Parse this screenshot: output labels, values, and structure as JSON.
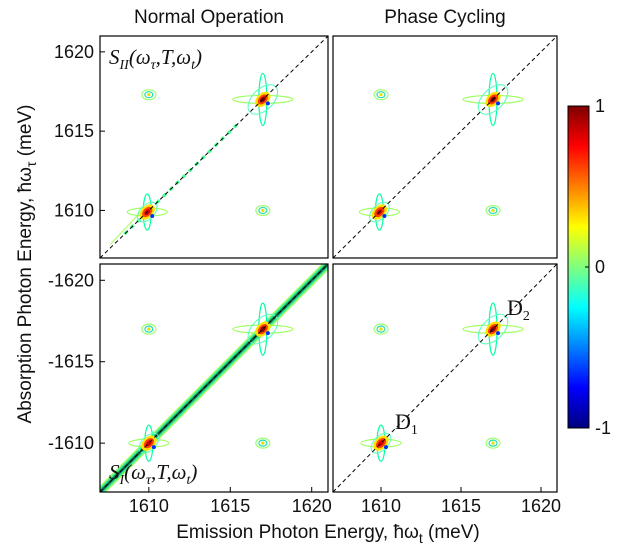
{
  "figure": {
    "column_titles": [
      "Normal Operation",
      "Phase Cycling"
    ],
    "xlabel": {
      "main": "Emission Photon Energy, ",
      "symbol": "ħω",
      "subscript": "t",
      "unit": " (meV)"
    },
    "ylabel": {
      "main": "Absorption Photon Energy, ",
      "symbol": "ħω",
      "subscript": "τ",
      "unit": " (meV)"
    }
  },
  "colorbar": {
    "ticks": [
      {
        "value": 1,
        "label": "1"
      },
      {
        "value": 0,
        "label": "0"
      },
      {
        "value": -1,
        "label": "-1"
      }
    ],
    "colors": [
      "#00007f",
      "#0000ff",
      "#007fff",
      "#00ffff",
      "#7fff7f",
      "#ffff00",
      "#ff7f00",
      "#ff0000",
      "#7f0000"
    ]
  },
  "chart_data": [
    {
      "type": "heatmap",
      "panel": "top-left",
      "column": "Normal Operation",
      "annotation": {
        "S": "S",
        "sub": "II",
        "args": "(ω",
        "a_sub": "τ",
        "rest": ",T,ω",
        "r_sub": "t",
        "close": ")"
      },
      "xlim": [
        1607,
        1621
      ],
      "ylim": [
        1607,
        1621
      ],
      "y_ticks": [
        {
          "value": 1610,
          "label": "1610"
        },
        {
          "value": 1615,
          "label": "1615"
        },
        {
          "value": 1620,
          "label": "1620"
        }
      ],
      "x_ticks": [],
      "diagonal": "dashed",
      "peaks": [
        {
          "x": 1617.0,
          "y": 1617.0,
          "amp": 1.0,
          "shape": "star-large"
        },
        {
          "x": 1609.9,
          "y": 1609.9,
          "amp": 0.6,
          "shape": "star"
        },
        {
          "x": 1610.0,
          "y": 1617.3,
          "amp": 0.15,
          "shape": "small"
        },
        {
          "x": 1617.0,
          "y": 1610.0,
          "amp": 0.15,
          "shape": "small"
        }
      ],
      "streak": {
        "from": [
          1608.5,
          1608.5
        ],
        "to": [
          1615.5,
          1615.5
        ]
      }
    },
    {
      "type": "heatmap",
      "panel": "top-right",
      "column": "Phase Cycling",
      "xlim": [
        1607,
        1621
      ],
      "ylim": [
        1607,
        1621
      ],
      "y_ticks": [],
      "x_ticks": [],
      "diagonal": "dashed",
      "peaks": [
        {
          "x": 1617.0,
          "y": 1617.0,
          "amp": 1.0,
          "shape": "star-large"
        },
        {
          "x": 1609.9,
          "y": 1609.9,
          "amp": 0.7,
          "shape": "star"
        },
        {
          "x": 1610.0,
          "y": 1617.3,
          "amp": 0.15,
          "shape": "small"
        },
        {
          "x": 1617.0,
          "y": 1610.0,
          "amp": 0.15,
          "shape": "small"
        }
      ]
    },
    {
      "type": "heatmap",
      "panel": "bottom-left",
      "column": "Normal Operation",
      "annotation": {
        "S": "S",
        "sub": "I",
        "args": "(ω",
        "a_sub": "τ",
        "rest": ",T,ω",
        "r_sub": "t",
        "close": ")"
      },
      "xlim": [
        1607,
        1621
      ],
      "ylim": [
        -1607,
        -1621
      ],
      "y_ticks": [
        {
          "value": -1610,
          "label": "-1610"
        },
        {
          "value": -1615,
          "label": "-1615"
        },
        {
          "value": -1620,
          "label": "-1620"
        }
      ],
      "x_ticks": [
        {
          "value": 1610,
          "label": "1610"
        },
        {
          "value": 1615,
          "label": "1615"
        },
        {
          "value": 1620,
          "label": "1620"
        }
      ],
      "diagonal": "dashed",
      "peaks": [
        {
          "x": 1610.0,
          "y": -1610.0,
          "amp": 0.5,
          "shape": "star"
        },
        {
          "x": 1617.0,
          "y": -1617.0,
          "amp": 1.0,
          "shape": "star-large"
        },
        {
          "x": 1617.0,
          "y": -1610.0,
          "amp": 0.15,
          "shape": "small"
        },
        {
          "x": 1610.0,
          "y": -1617.0,
          "amp": 0.15,
          "shape": "small"
        }
      ],
      "ridge": {
        "from": [
          1607,
          -1607
        ],
        "to": [
          1621,
          -1621
        ]
      }
    },
    {
      "type": "heatmap",
      "panel": "bottom-right",
      "column": "Phase Cycling",
      "xlim": [
        1607,
        1621
      ],
      "ylim": [
        -1607,
        -1621
      ],
      "y_ticks": [],
      "x_ticks": [
        {
          "value": 1610,
          "label": "1610"
        },
        {
          "value": 1615,
          "label": "1615"
        },
        {
          "value": 1620,
          "label": "1620"
        }
      ],
      "diagonal": "dashed",
      "peaks": [
        {
          "x": 1610.0,
          "y": -1610.0,
          "amp": 0.7,
          "shape": "star",
          "label": "D",
          "label_sub": "1"
        },
        {
          "x": 1617.0,
          "y": -1617.0,
          "amp": 1.0,
          "shape": "star-large",
          "label": "D",
          "label_sub": "2"
        },
        {
          "x": 1617.0,
          "y": -1610.0,
          "amp": 0.15,
          "shape": "small"
        },
        {
          "x": 1610.0,
          "y": -1617.0,
          "amp": 0.15,
          "shape": "small"
        }
      ]
    }
  ]
}
